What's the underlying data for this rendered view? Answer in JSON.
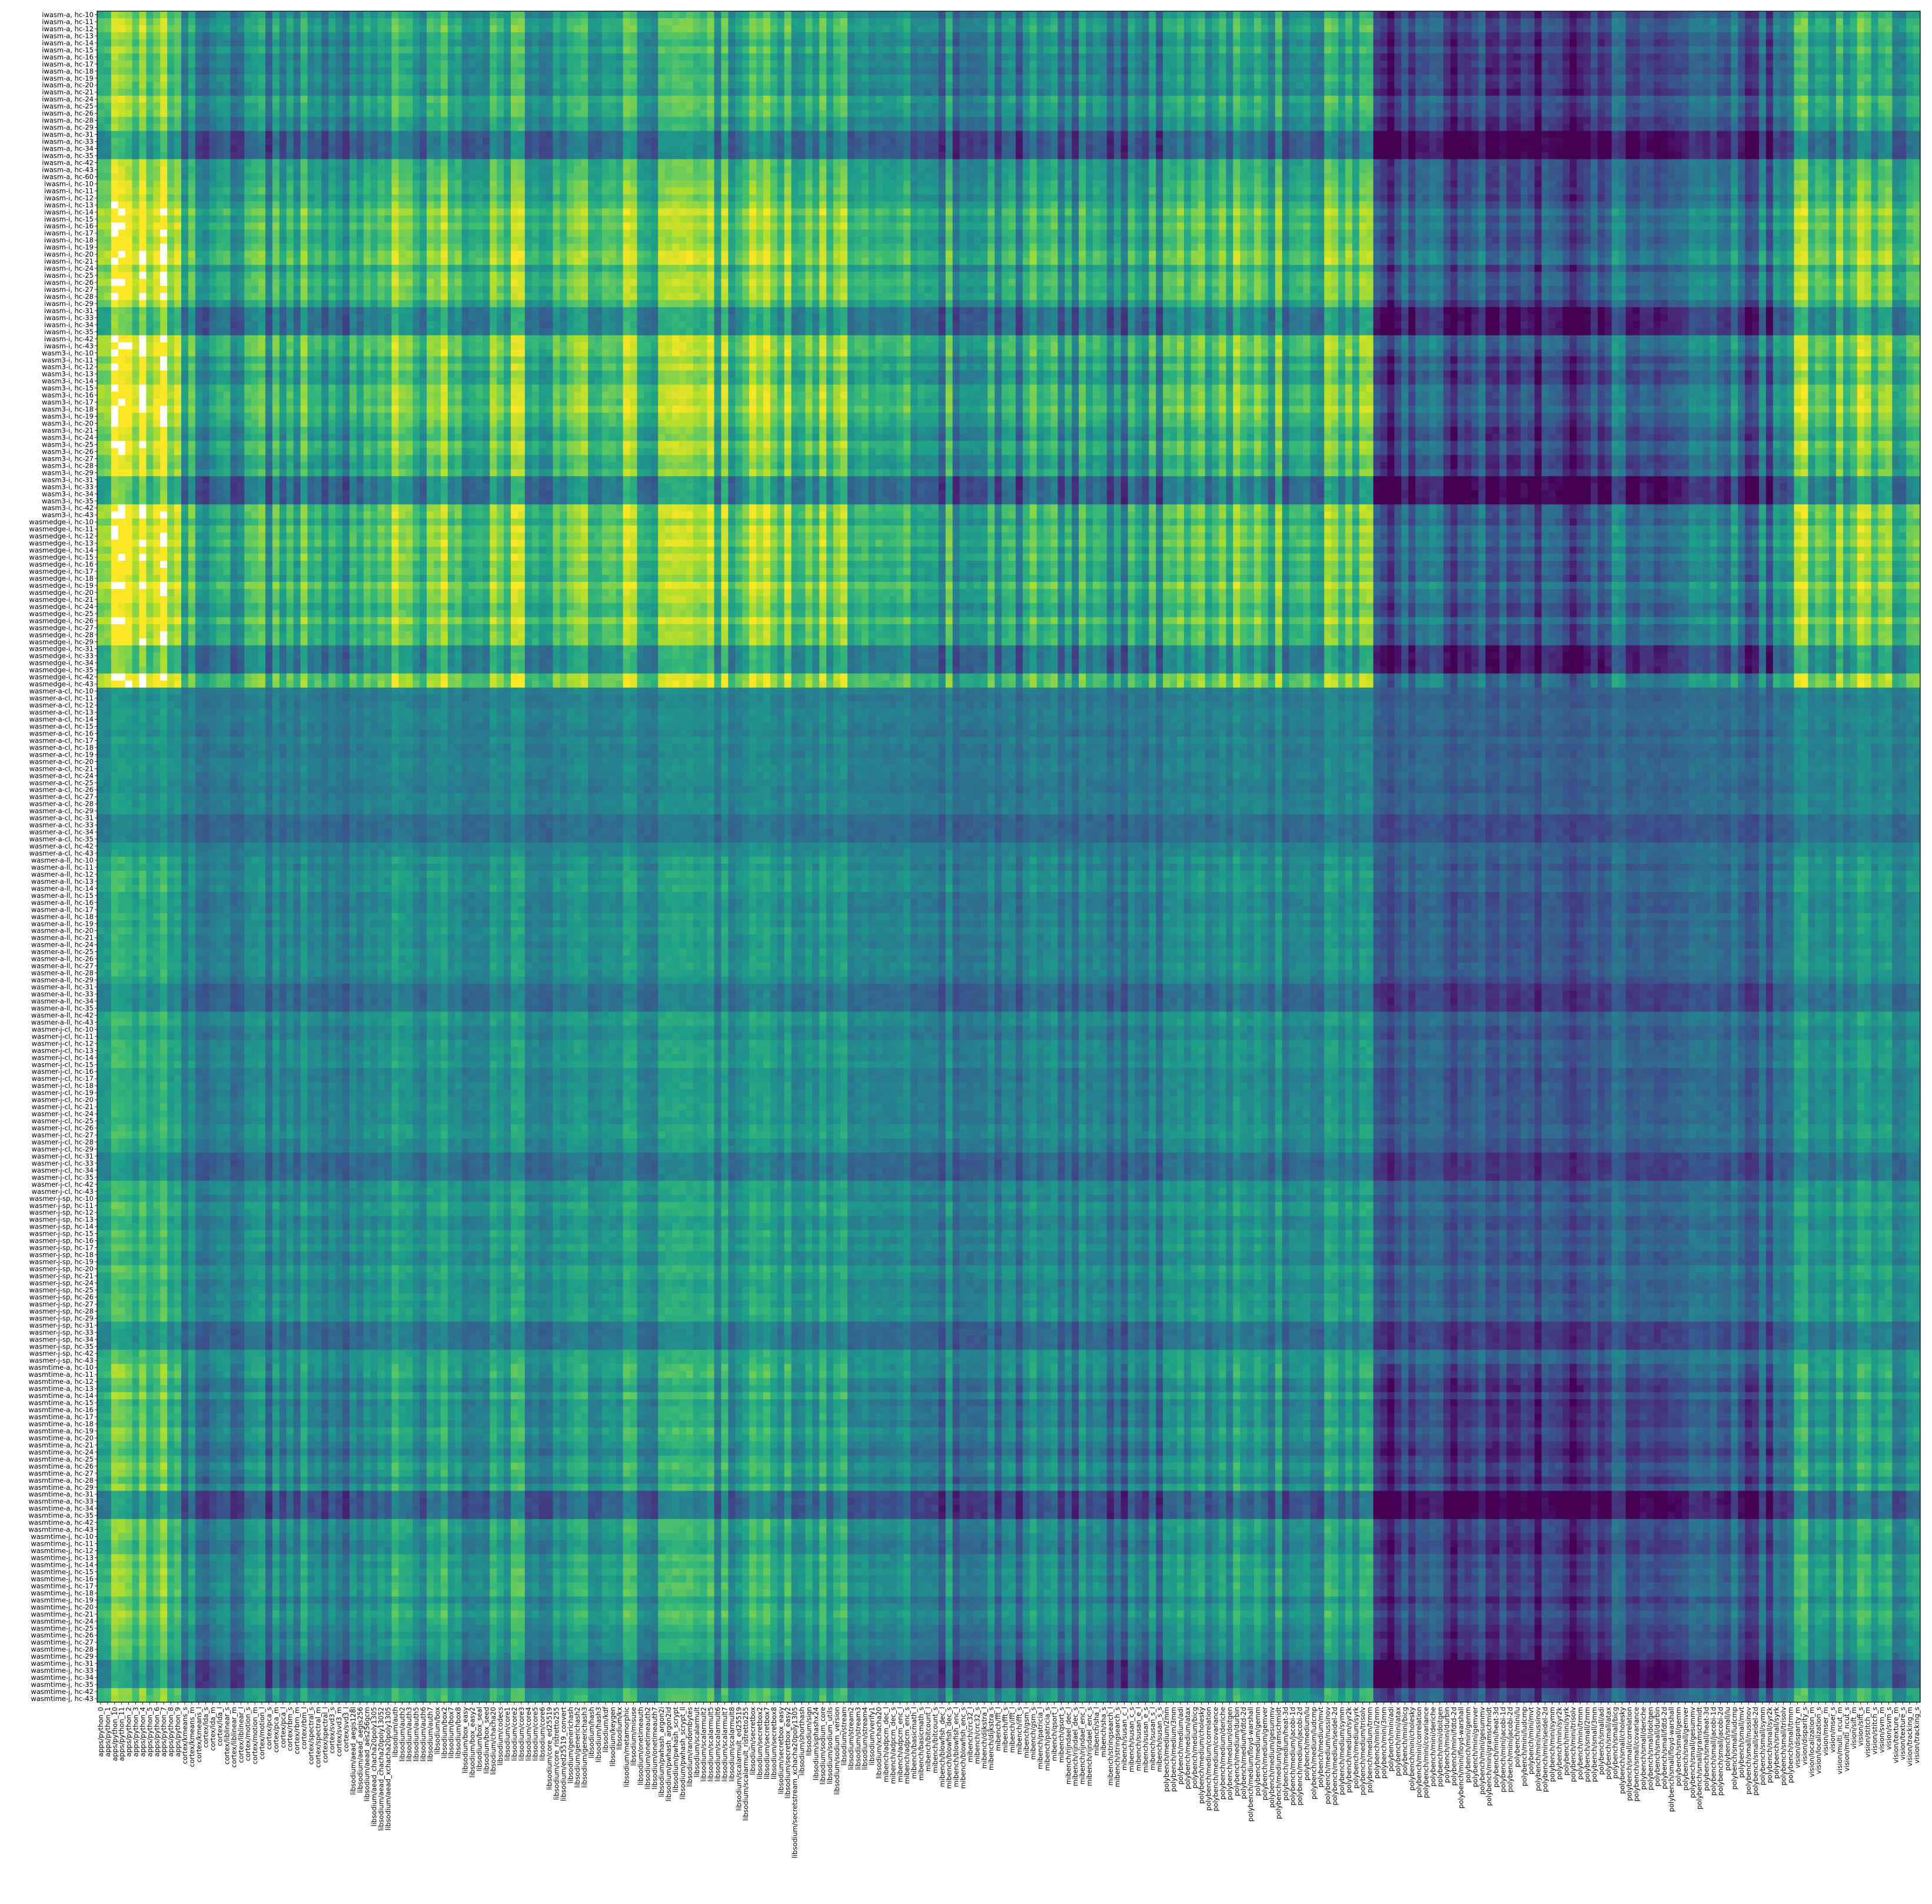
{
  "chart_data": {
    "type": "heatmap",
    "title": "",
    "xlabel": "",
    "ylabel": "",
    "colormap": "viridis",
    "missing_color": "#ffffff",
    "legend": "none",
    "grid": false,
    "value_range": [
      0,
      1
    ],
    "row_blocks": [
      {
        "runtime": "iwasm-a",
        "configs": [
          "hc-10",
          "hc-11",
          "hc-12",
          "hc-13",
          "hc-14",
          "hc-15",
          "hc-16",
          "hc-17",
          "hc-18",
          "hc-19",
          "hc-20",
          "hc-21",
          "hc-24",
          "hc-25",
          "hc-26",
          "hc-28",
          "hc-29",
          "hc-31",
          "hc-33",
          "hc-34",
          "hc-35",
          "hc-42",
          "hc-43",
          "hc-60"
        ]
      },
      {
        "runtime": "iwasm-i",
        "configs": [
          "hc-10",
          "hc-11",
          "hc-12",
          "hc-13",
          "hc-14",
          "hc-15",
          "hc-16",
          "hc-17",
          "hc-18",
          "hc-19",
          "hc-20",
          "hc-21",
          "hc-24",
          "hc-25",
          "hc-26",
          "hc-27",
          "hc-28",
          "hc-29",
          "hc-31",
          "hc-33",
          "hc-34",
          "hc-35",
          "hc-42",
          "hc-43"
        ]
      },
      {
        "runtime": "wasm3-i",
        "configs": [
          "hc-10",
          "hc-11",
          "hc-12",
          "hc-13",
          "hc-14",
          "hc-15",
          "hc-16",
          "hc-17",
          "hc-18",
          "hc-19",
          "hc-20",
          "hc-21",
          "hc-24",
          "hc-25",
          "hc-26",
          "hc-27",
          "hc-28",
          "hc-29",
          "hc-31",
          "hc-33",
          "hc-34",
          "hc-35",
          "hc-42",
          "hc-43"
        ]
      },
      {
        "runtime": "wasmedge-i",
        "configs": [
          "hc-10",
          "hc-11",
          "hc-12",
          "hc-13",
          "hc-14",
          "hc-15",
          "hc-16",
          "hc-17",
          "hc-18",
          "hc-19",
          "hc-20",
          "hc-21",
          "hc-24",
          "hc-25",
          "hc-26",
          "hc-27",
          "hc-28",
          "hc-29",
          "hc-31",
          "hc-33",
          "hc-34",
          "hc-35",
          "hc-42",
          "hc-43"
        ]
      },
      {
        "runtime": "wasmer-a-cl",
        "configs": [
          "hc-10",
          "hc-11",
          "hc-12",
          "hc-13",
          "hc-14",
          "hc-15",
          "hc-16",
          "hc-17",
          "hc-18",
          "hc-19",
          "hc-20",
          "hc-21",
          "hc-24",
          "hc-25",
          "hc-26",
          "hc-27",
          "hc-28",
          "hc-29",
          "hc-31",
          "hc-33",
          "hc-34",
          "hc-35",
          "hc-42",
          "hc-43"
        ]
      },
      {
        "runtime": "wasmer-a-ll",
        "configs": [
          "hc-10",
          "hc-11",
          "hc-12",
          "hc-13",
          "hc-14",
          "hc-15",
          "hc-16",
          "hc-17",
          "hc-18",
          "hc-19",
          "hc-20",
          "hc-21",
          "hc-24",
          "hc-25",
          "hc-26",
          "hc-27",
          "hc-28",
          "hc-29",
          "hc-31",
          "hc-33",
          "hc-34",
          "hc-35",
          "hc-42",
          "hc-43"
        ]
      },
      {
        "runtime": "wasmer-j-cl",
        "configs": [
          "hc-10",
          "hc-11",
          "hc-12",
          "hc-13",
          "hc-14",
          "hc-15",
          "hc-16",
          "hc-17",
          "hc-18",
          "hc-19",
          "hc-20",
          "hc-21",
          "hc-24",
          "hc-25",
          "hc-26",
          "hc-27",
          "hc-28",
          "hc-29",
          "hc-31",
          "hc-33",
          "hc-34",
          "hc-35",
          "hc-42",
          "hc-43"
        ]
      },
      {
        "runtime": "wasmer-j-sp",
        "configs": [
          "hc-10",
          "hc-11",
          "hc-12",
          "hc-13",
          "hc-14",
          "hc-15",
          "hc-16",
          "hc-17",
          "hc-18",
          "hc-19",
          "hc-20",
          "hc-21",
          "hc-24",
          "hc-25",
          "hc-26",
          "hc-27",
          "hc-28",
          "hc-29",
          "hc-31",
          "hc-33",
          "hc-34",
          "hc-35",
          "hc-42",
          "hc-43"
        ]
      },
      {
        "runtime": "wasmtime-a",
        "configs": [
          "hc-10",
          "hc-11",
          "hc-12",
          "hc-13",
          "hc-14",
          "hc-15",
          "hc-16",
          "hc-17",
          "hc-18",
          "hc-19",
          "hc-20",
          "hc-21",
          "hc-24",
          "hc-25",
          "hc-26",
          "hc-27",
          "hc-28",
          "hc-29",
          "hc-31",
          "hc-33",
          "hc-34",
          "hc-35",
          "hc-42",
          "hc-43"
        ]
      },
      {
        "runtime": "wasmtime-j",
        "configs": [
          "hc-10",
          "hc-11",
          "hc-12",
          "hc-13",
          "hc-14",
          "hc-15",
          "hc-16",
          "hc-17",
          "hc-18",
          "hc-19",
          "hc-20",
          "hc-21",
          "hc-24",
          "hc-25",
          "hc-26",
          "hc-27",
          "hc-28",
          "hc-29",
          "hc-31",
          "hc-33",
          "hc-34",
          "hc-35",
          "hc-42",
          "hc-43"
        ]
      }
    ],
    "columns": [
      "apps/python_0",
      "apps/python_1",
      "apps/python_10",
      "apps/python_11",
      "apps/python_2",
      "apps/python_3",
      "apps/python_4",
      "apps/python_5",
      "apps/python_6",
      "apps/python_7",
      "apps/python_8",
      "apps/python_9",
      "cortex/kmeans_s",
      "cortex/kmeans_m",
      "cortex/kmeans_l",
      "cortex/lda_s",
      "cortex/lda_m",
      "cortex/lda_l",
      "cortex/liblinear_s",
      "cortex/liblinear_m",
      "cortex/liblinear_l",
      "cortex/motion_s",
      "cortex/motion_m",
      "cortex/motion_l",
      "cortex/pca_s",
      "cortex/pca_m",
      "cortex/pca_l",
      "cortex/rbm_s",
      "cortex/rbm_m",
      "cortex/rbm_l",
      "cortex/spectral_s",
      "cortex/spectral_m",
      "cortex/spectral_l",
      "cortex/svd3_s",
      "cortex/svd3_m",
      "cortex/svd3_l",
      "libsodium/aead_aegis128l",
      "libsodium/aead_aegis256",
      "libsodium/aead_aes256gcm",
      "libsodium/aead_chacha20poly1305",
      "libsodium/aead_chacha20poly13052",
      "libsodium/aead_xchacha20poly1305",
      "libsodium/auth",
      "libsodium/auth2",
      "libsodium/auth3",
      "libsodium/auth5",
      "libsodium/auth6",
      "libsodium/auth7",
      "libsodium/box",
      "libsodium/box2",
      "libsodium/box7",
      "libsodium/box8",
      "libsodium/box_easy",
      "libsodium/box_easy2",
      "libsodium/box_seal",
      "libsodium/box_seed",
      "libsodium/chacha20",
      "libsodium/codecs",
      "libsodium/core1",
      "libsodium/core2",
      "libsodium/core3",
      "libsodium/core4",
      "libsodium/core5",
      "libsodium/core6",
      "libsodium/core_ed25519",
      "libsodium/core_ristretto255",
      "libsodium/ed25519_convert",
      "libsodium/generichash",
      "libsodium/generichash2",
      "libsodium/generichash3",
      "libsodium/hash",
      "libsodium/hash3",
      "libsodium/kdf",
      "libsodium/keygen",
      "libsodium/kx",
      "libsodium/metamorphic",
      "libsodium/misuse",
      "libsodium/onetimeauth",
      "libsodium/onetimeauth2",
      "libsodium/onetimeauth7",
      "libsodium/pwhash_argon2i",
      "libsodium/pwhash_argon2id",
      "libsodium/pwhash_scrypt",
      "libsodium/pwhash_scrypt_ll",
      "libsodium/randombytes",
      "libsodium/scalarmult",
      "libsodium/scalarmult2",
      "libsodium/scalarmult5",
      "libsodium/scalarmult6",
      "libsodium/scalarmult7",
      "libsodium/scalarmult8",
      "libsodium/scalarmult_ed25519",
      "libsodium/scalarmult_ristretto255",
      "libsodium/secretbox",
      "libsodium/secretbox2",
      "libsodium/secretbox7",
      "libsodium/secretbox8",
      "libsodium/secretbox_easy",
      "libsodium/secretbox_easy2",
      "libsodium/secretstream_xchacha20poly1305",
      "libsodium/shorthash",
      "libsodium/sign",
      "libsodium/siphashx24",
      "libsodium/sodium_core",
      "libsodium/sodium_utils",
      "libsodium/sodium_version",
      "libsodium/stream",
      "libsodium/stream2",
      "libsodium/stream3",
      "libsodium/stream4",
      "libsodium/verify1",
      "libsodium/xchacha20",
      "mibench/adpcm_dec_l",
      "mibench/adpcm_dec_s",
      "mibench/adpcm_enc_l",
      "mibench/adpcm_enc_s",
      "mibench/basicmath_l",
      "mibench/basicmath_s",
      "mibench/bitcount_l",
      "mibench/bitcount_s",
      "mibench/blowfish_dec_l",
      "mibench/blowfish_dec_s",
      "mibench/blowfish_enc_l",
      "mibench/blowfish_enc_s",
      "mibench/crc32_l",
      "mibench/crc32_s",
      "mibench/dijkstra_l",
      "mibench/dijkstra_s",
      "mibench/fft_l",
      "mibench/fft_s",
      "mibench/ifft_l",
      "mibench/ifft_s",
      "mibench/gsm_l",
      "mibench/gsm_s",
      "mibench/patricia_l",
      "mibench/patricia_s",
      "mibench/qsort_l",
      "mibench/qsort_s",
      "mibench/rijndael_dec_l",
      "mibench/rijndael_dec_s",
      "mibench/rijndael_enc_l",
      "mibench/rijndael_enc_s",
      "mibench/sha_l",
      "mibench/sha_s",
      "mibench/stringsearch_l",
      "mibench/stringsearch_s",
      "mibench/susan_c_l",
      "mibench/susan_c_s",
      "mibench/susan_e_l",
      "mibench/susan_e_s",
      "mibench/susan_s_l",
      "mibench/susan_s_s",
      "polybench/medium/2mm",
      "polybench/medium/3mm",
      "polybench/medium/adi",
      "polybench/medium/atax",
      "polybench/medium/bicg",
      "polybench/medium/cholesky",
      "polybench/medium/correlation",
      "polybench/medium/covariance",
      "polybench/medium/deriche",
      "polybench/medium/doitgen",
      "polybench/medium/durbin",
      "polybench/medium/fdtd-2d",
      "polybench/medium/floyd-warshall",
      "polybench/medium/gemm",
      "polybench/medium/gemver",
      "polybench/medium/gesummv",
      "polybench/medium/gramschmidt",
      "polybench/medium/heat-3d",
      "polybench/medium/jacobi-1d",
      "polybench/medium/jacobi-2d",
      "polybench/medium/lu",
      "polybench/medium/ludcmp",
      "polybench/medium/mvt",
      "polybench/medium/nussinov",
      "polybench/medium/seidel-2d",
      "polybench/medium/symm",
      "polybench/medium/syr2k",
      "polybench/medium/syrk",
      "polybench/medium/trisolv",
      "polybench/medium/trmm",
      "polybench/mini/2mm",
      "polybench/mini/3mm",
      "polybench/mini/adi",
      "polybench/mini/atax",
      "polybench/mini/bicg",
      "polybench/mini/cholesky",
      "polybench/mini/correlation",
      "polybench/mini/covariance",
      "polybench/mini/deriche",
      "polybench/mini/doitgen",
      "polybench/mini/durbin",
      "polybench/mini/fdtd-2d",
      "polybench/mini/floyd-warshall",
      "polybench/mini/gemm",
      "polybench/mini/gemver",
      "polybench/mini/gesummv",
      "polybench/mini/gramschmidt",
      "polybench/mini/heat-3d",
      "polybench/mini/jacobi-1d",
      "polybench/mini/jacobi-2d",
      "polybench/mini/lu",
      "polybench/mini/ludcmp",
      "polybench/mini/mvt",
      "polybench/mini/nussinov",
      "polybench/mini/seidel-2d",
      "polybench/mini/symm",
      "polybench/mini/syr2k",
      "polybench/mini/syrk",
      "polybench/mini/trisolv",
      "polybench/mini/trmm",
      "polybench/small/2mm",
      "polybench/small/3mm",
      "polybench/small/adi",
      "polybench/small/atax",
      "polybench/small/bicg",
      "polybench/small/cholesky",
      "polybench/small/correlation",
      "polybench/small/covariance",
      "polybench/small/deriche",
      "polybench/small/doitgen",
      "polybench/small/durbin",
      "polybench/small/fdtd-2d",
      "polybench/small/floyd-warshall",
      "polybench/small/gemm",
      "polybench/small/gemver",
      "polybench/small/gesummv",
      "polybench/small/gramschmidt",
      "polybench/small/heat-3d",
      "polybench/small/jacobi-1d",
      "polybench/small/jacobi-2d",
      "polybench/small/lu",
      "polybench/small/ludcmp",
      "polybench/small/mvt",
      "polybench/small/nussinov",
      "polybench/small/seidel-2d",
      "polybench/small/symm",
      "polybench/small/syr2k",
      "polybench/small/syrk",
      "polybench/small/trisolv",
      "polybench/small/trmm",
      "vision/disparity_m",
      "vision/disparity_s",
      "vision/localization_m",
      "vision/localization_s",
      "vision/mser_m",
      "vision/mser_s",
      "vision/multi_ncut_m",
      "vision/multi_ncut_s",
      "vision/sift_m",
      "vision/sift_s",
      "vision/stitch_m",
      "vision/stitch_s",
      "vision/svm_m",
      "vision/svm_s",
      "vision/texture_m",
      "vision/texture_s",
      "vision/tracking_m",
      "vision/tracking_s"
    ]
  }
}
